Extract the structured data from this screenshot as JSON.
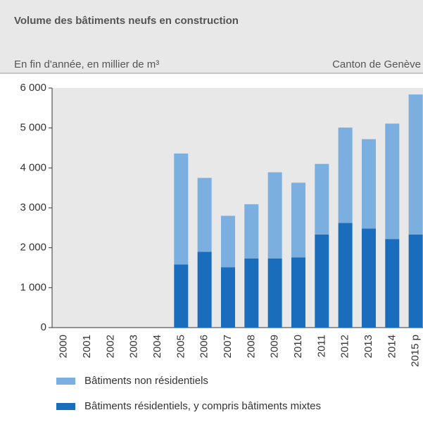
{
  "chart_data": {
    "type": "stacked_bar",
    "title": "Volume des bâtiments neufs en construction",
    "subtitle": "En fin d'année, en millier de m³",
    "region": "Canton de Genève",
    "categories": [
      "2000",
      "2001",
      "2002",
      "2003",
      "2004",
      "2005",
      "2006",
      "2007",
      "2008",
      "2009",
      "2010",
      "2011",
      "2012",
      "2013",
      "2014",
      "2015 p"
    ],
    "series": [
      {
        "name": "Bâtiments résidentiels, y compris bâtiments mixtes",
        "color": "#1a6dbd",
        "values": [
          null,
          null,
          null,
          null,
          null,
          1580,
          1900,
          1510,
          1730,
          1730,
          1760,
          2330,
          2620,
          2480,
          2220,
          2330
        ]
      },
      {
        "name": "Bâtiments non résidentiels",
        "color": "#7aafdf",
        "values": [
          null,
          null,
          null,
          null,
          null,
          2780,
          1850,
          1290,
          1360,
          2160,
          1870,
          1770,
          2390,
          2240,
          2890,
          3510
        ]
      }
    ],
    "ylim": [
      0,
      6000
    ],
    "yticks": [
      0,
      {
        "value": 1000,
        "label": "1 000"
      },
      {
        "value": 2000,
        "label": "2 000"
      },
      {
        "value": 3000,
        "label": "3 000"
      },
      {
        "value": 4000,
        "label": "4 000"
      },
      {
        "value": 5000,
        "label": "5 000"
      },
      {
        "value": 6000,
        "label": "6 000"
      }
    ],
    "grid": false
  }
}
